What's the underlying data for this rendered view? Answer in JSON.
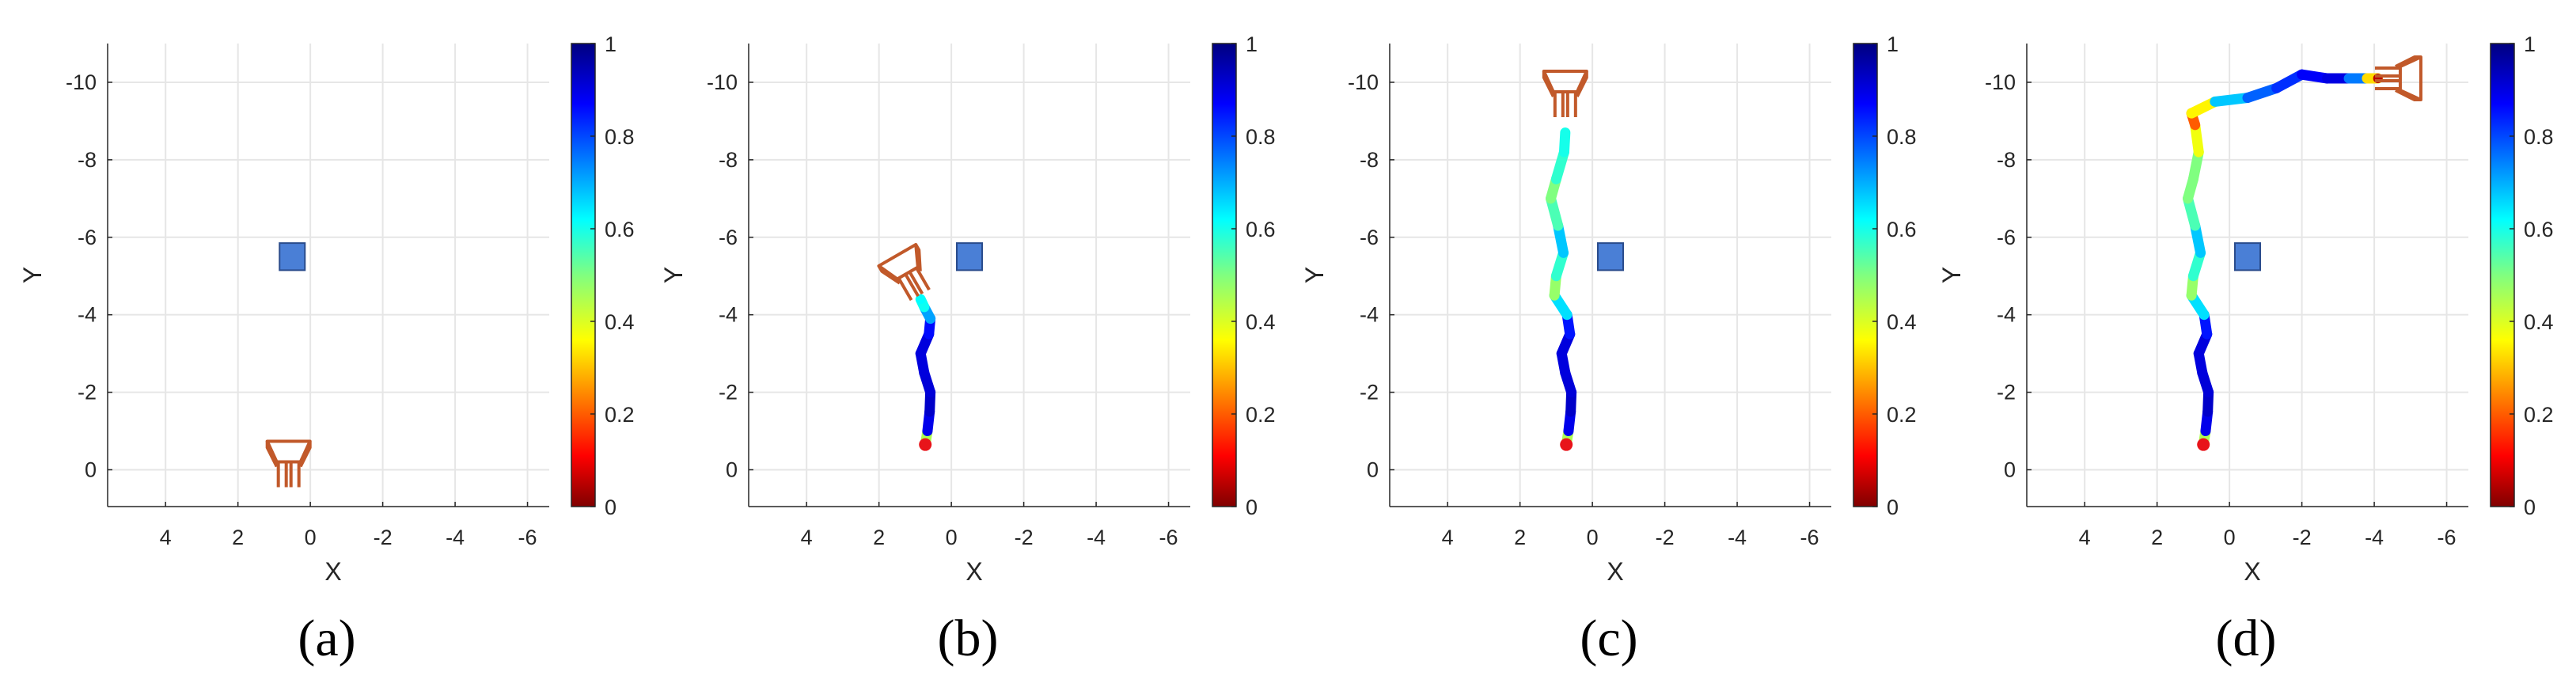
{
  "figure": {
    "panels": [
      {
        "label": "(a)"
      },
      {
        "label": "(b)"
      },
      {
        "label": "(c)"
      },
      {
        "label": "(d)"
      }
    ],
    "colorbar": {
      "ticks": [
        "0",
        "0.2",
        "0.4",
        "0.6",
        "0.8",
        "1"
      ],
      "range": [
        0,
        1
      ],
      "colormap": "jet"
    },
    "colors": {
      "obstacle": "#4a7fd6",
      "robot": "#c1592a",
      "start_marker": "#e8141a"
    }
  },
  "chart_data": [
    {
      "type": "scatter",
      "title": "",
      "panel": "(a)",
      "xlabel": "X",
      "ylabel": "Y",
      "xlim": [
        5.6,
        -6.6
      ],
      "ylim": [
        0.95,
        -11
      ],
      "xticks": [
        "4",
        "2",
        "0",
        "-2",
        "-4",
        "-6"
      ],
      "yticks": [
        "0",
        "-2",
        "-4",
        "-6",
        "-8",
        "-10"
      ],
      "obstacle": {
        "x": 0.5,
        "y": -5.5,
        "size": 0.7
      },
      "robot_pose": {
        "x": 0.6,
        "y": 0,
        "heading": "up"
      },
      "trajectory": []
    },
    {
      "type": "scatter",
      "title": "",
      "panel": "(b)",
      "xlabel": "X",
      "ylabel": "Y",
      "xlim": [
        5.6,
        -6.6
      ],
      "ylim": [
        0.95,
        -11
      ],
      "xticks": [
        "4",
        "2",
        "0",
        "-2",
        "-4",
        "-6"
      ],
      "yticks": [
        "0",
        "-2",
        "-4",
        "-6",
        "-8",
        "-10"
      ],
      "obstacle": {
        "x": -0.5,
        "y": -5.5,
        "size": 0.7
      },
      "robot_pose": {
        "x": 1.1,
        "y": -4.9,
        "heading": "up-left"
      },
      "trajectory": [
        {
          "x": 0.72,
          "y": -0.65,
          "v": 0.05
        },
        {
          "x": 0.66,
          "y": -1.0,
          "v": 0.85
        },
        {
          "x": 0.6,
          "y": -1.5,
          "v": 0.93
        },
        {
          "x": 0.58,
          "y": -2.0,
          "v": 0.92
        },
        {
          "x": 0.75,
          "y": -2.5,
          "v": 0.9
        },
        {
          "x": 0.85,
          "y": -3.0,
          "v": 0.91
        },
        {
          "x": 0.62,
          "y": -3.5,
          "v": 0.9
        },
        {
          "x": 0.58,
          "y": -3.9,
          "v": 0.82
        },
        {
          "x": 0.75,
          "y": -4.2,
          "v": 0.6
        },
        {
          "x": 0.85,
          "y": -4.4,
          "v": 0.62
        }
      ]
    },
    {
      "type": "scatter",
      "title": "",
      "panel": "(c)",
      "xlabel": "X",
      "ylabel": "Y",
      "xlim": [
        5.6,
        -6.6
      ],
      "ylim": [
        0.95,
        -11
      ],
      "xticks": [
        "4",
        "2",
        "0",
        "-2",
        "-4",
        "-6"
      ],
      "yticks": [
        "0",
        "-2",
        "-4",
        "-6",
        "-8",
        "-10"
      ],
      "obstacle": {
        "x": -0.5,
        "y": -5.5,
        "size": 0.7
      },
      "robot_pose": {
        "x": 0.75,
        "y": -9.55,
        "heading": "up"
      },
      "trajectory": [
        {
          "x": 0.72,
          "y": -0.65,
          "v": 0.05
        },
        {
          "x": 0.66,
          "y": -1.0,
          "v": 0.85
        },
        {
          "x": 0.6,
          "y": -1.5,
          "v": 0.93
        },
        {
          "x": 0.58,
          "y": -2.0,
          "v": 0.92
        },
        {
          "x": 0.75,
          "y": -2.5,
          "v": 0.9
        },
        {
          "x": 0.85,
          "y": -3.0,
          "v": 0.91
        },
        {
          "x": 0.62,
          "y": -3.5,
          "v": 0.9
        },
        {
          "x": 0.7,
          "y": -4.0,
          "v": 0.8
        },
        {
          "x": 1.05,
          "y": -4.5,
          "v": 0.5
        },
        {
          "x": 1.0,
          "y": -5.0,
          "v": 0.45
        },
        {
          "x": 0.8,
          "y": -5.6,
          "v": 0.7
        },
        {
          "x": 0.95,
          "y": -6.3,
          "v": 0.65
        },
        {
          "x": 1.15,
          "y": -7.0,
          "v": 0.45
        },
        {
          "x": 1.0,
          "y": -7.5,
          "v": 0.55
        },
        {
          "x": 0.78,
          "y": -8.2,
          "v": 0.6
        },
        {
          "x": 0.75,
          "y": -8.7,
          "v": 0.6
        }
      ]
    },
    {
      "type": "scatter",
      "title": "",
      "panel": "(d)",
      "xlabel": "X",
      "ylabel": "Y",
      "xlim": [
        5.6,
        -6.6
      ],
      "ylim": [
        0.95,
        -11
      ],
      "xticks": [
        "4",
        "2",
        "0",
        "-2",
        "-4",
        "-6"
      ],
      "yticks": [
        "0",
        "-2",
        "-4",
        "-6",
        "-8",
        "-10"
      ],
      "obstacle": {
        "x": -0.5,
        "y": -5.5,
        "size": 0.7
      },
      "robot_pose": {
        "x": -4.5,
        "y": -10.1,
        "heading": "right"
      },
      "trajectory": [
        {
          "x": 0.72,
          "y": -0.65,
          "v": 0.05
        },
        {
          "x": 0.66,
          "y": -1.0,
          "v": 0.85
        },
        {
          "x": 0.6,
          "y": -1.5,
          "v": 0.93
        },
        {
          "x": 0.58,
          "y": -2.0,
          "v": 0.92
        },
        {
          "x": 0.75,
          "y": -2.5,
          "v": 0.9
        },
        {
          "x": 0.85,
          "y": -3.0,
          "v": 0.91
        },
        {
          "x": 0.62,
          "y": -3.5,
          "v": 0.9
        },
        {
          "x": 0.7,
          "y": -4.0,
          "v": 0.8
        },
        {
          "x": 1.05,
          "y": -4.5,
          "v": 0.5
        },
        {
          "x": 1.0,
          "y": -5.0,
          "v": 0.45
        },
        {
          "x": 0.8,
          "y": -5.6,
          "v": 0.7
        },
        {
          "x": 0.95,
          "y": -6.3,
          "v": 0.65
        },
        {
          "x": 1.15,
          "y": -7.0,
          "v": 0.45
        },
        {
          "x": 1.0,
          "y": -7.5,
          "v": 0.55
        },
        {
          "x": 0.85,
          "y": -8.2,
          "v": 0.45
        },
        {
          "x": 0.95,
          "y": -8.9,
          "v": 0.3
        },
        {
          "x": 1.05,
          "y": -9.2,
          "v": 0.1
        },
        {
          "x": 0.4,
          "y": -9.5,
          "v": 0.6
        },
        {
          "x": -0.5,
          "y": -9.6,
          "v": 0.75
        },
        {
          "x": -1.3,
          "y": -9.85,
          "v": 0.8
        },
        {
          "x": -2.0,
          "y": -10.2,
          "v": 0.85
        },
        {
          "x": -2.7,
          "y": -10.1,
          "v": 0.9
        },
        {
          "x": -3.3,
          "y": -10.1,
          "v": 0.9
        },
        {
          "x": -3.8,
          "y": -10.1,
          "v": 0.6
        },
        {
          "x": -4.1,
          "y": -10.1,
          "v": 0.05
        }
      ]
    }
  ]
}
